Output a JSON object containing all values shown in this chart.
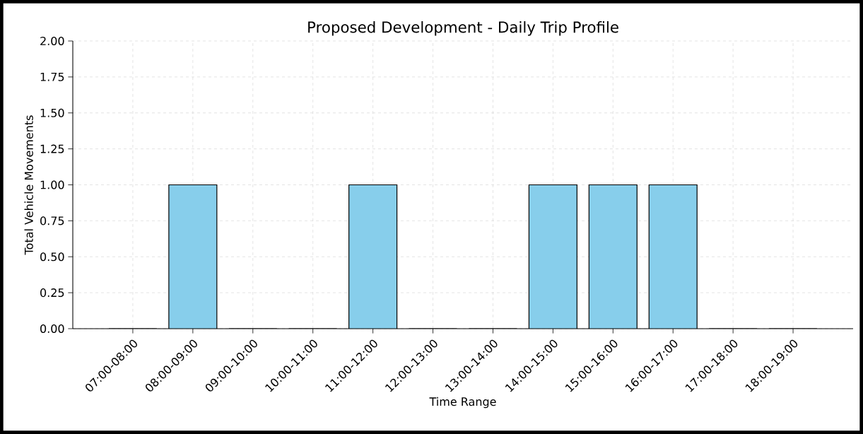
{
  "chart_data": {
    "type": "bar",
    "title": "Proposed Development - Daily Trip Profile",
    "xlabel": "Time Range",
    "ylabel": "Total Vehicle Movements",
    "categories": [
      "07:00-08:00",
      "08:00-09:00",
      "09:00-10:00",
      "10:00-11:00",
      "11:00-12:00",
      "12:00-13:00",
      "13:00-14:00",
      "14:00-15:00",
      "15:00-16:00",
      "16:00-17:00",
      "17:00-18:00",
      "18:00-19:00"
    ],
    "values": [
      0,
      1,
      0,
      0,
      1,
      0,
      0,
      1,
      1,
      1,
      0,
      0
    ],
    "color": "#87ceeb",
    "ylim": [
      0,
      2
    ],
    "yticks": [
      {
        "value": 0,
        "label": "0.00"
      },
      {
        "value": 0.25,
        "label": "0.25"
      },
      {
        "value": 0.5,
        "label": "0.50"
      },
      {
        "value": 0.75,
        "label": "0.75"
      },
      {
        "value": 1,
        "label": "1.00"
      },
      {
        "value": 1.25,
        "label": "1.25"
      },
      {
        "value": 1.5,
        "label": "1.50"
      },
      {
        "value": 1.75,
        "label": "1.75"
      },
      {
        "value": 2,
        "label": "2.00"
      }
    ],
    "grid": true
  }
}
